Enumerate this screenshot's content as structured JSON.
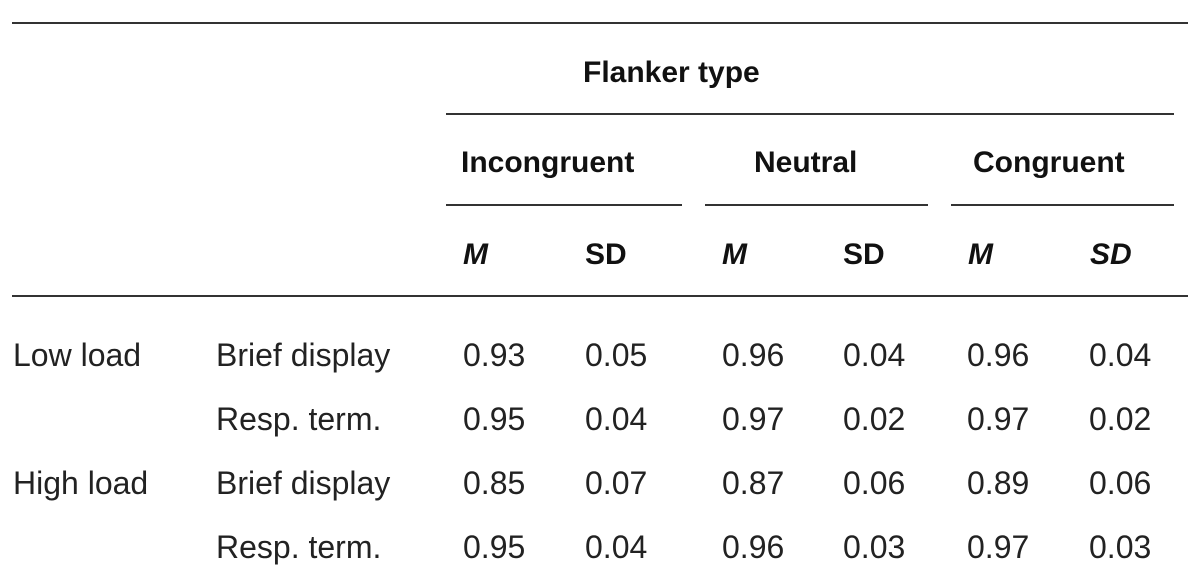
{
  "table": {
    "flanker_header": "Flanker type",
    "groups": [
      {
        "label": "Incongruent",
        "col1": "M",
        "col2": "SD"
      },
      {
        "label": "Neutral",
        "col1": "M",
        "col2": "SD"
      },
      {
        "label": "Congruent",
        "col1": "M",
        "col2": "SD"
      }
    ],
    "rows": [
      {
        "load": "Low load",
        "condition": "Brief display",
        "values": [
          "0.93",
          "0.05",
          "0.96",
          "0.04",
          "0.96",
          "0.04"
        ]
      },
      {
        "load": "",
        "condition": "Resp. term.",
        "values": [
          "0.95",
          "0.04",
          "0.97",
          "0.02",
          "0.97",
          "0.02"
        ]
      },
      {
        "load": "High load",
        "condition": "Brief display",
        "values": [
          "0.85",
          "0.07",
          "0.87",
          "0.06",
          "0.89",
          "0.06"
        ]
      },
      {
        "load": "",
        "condition": "Resp. term.",
        "values": [
          "0.95",
          "0.04",
          "0.96",
          "0.03",
          "0.97",
          "0.03"
        ]
      }
    ]
  }
}
